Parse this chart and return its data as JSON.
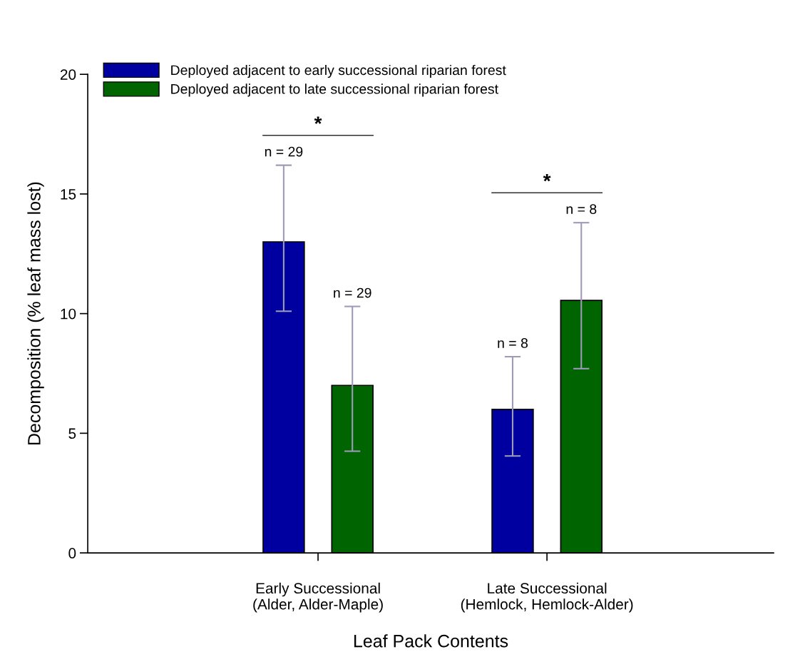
{
  "chart_data": {
    "type": "bar",
    "xlabel": "Leaf Pack Contents",
    "ylabel": "Decomposition (% leaf mass lost)",
    "categories": [
      "Early Successional\n(Alder, Alder-Maple)",
      "Late Successional\n(Hemlock, Hemlock-Alder)"
    ],
    "series": [
      {
        "name": "Deployed adjacent to early successional riparian forest",
        "color": "#0000a0",
        "values": [
          13.0,
          6.0
        ],
        "errors": [
          [
            10.1,
            16.2
          ],
          [
            4.05,
            8.2
          ]
        ]
      },
      {
        "name": "Deployed adjacent to late successional riparian forest",
        "color": "#006400",
        "values": [
          7.0,
          10.55
        ],
        "errors": [
          [
            4.25,
            10.3
          ],
          [
            7.7,
            13.8
          ]
        ]
      }
    ],
    "annotations": [
      "n = 29",
      "n = 29",
      "n = 8",
      "n = 8",
      "*",
      "*"
    ],
    "ylim": [
      0,
      20
    ],
    "yticks": [
      0,
      5,
      10,
      15,
      20
    ],
    "grid": false,
    "legend": "top left"
  }
}
